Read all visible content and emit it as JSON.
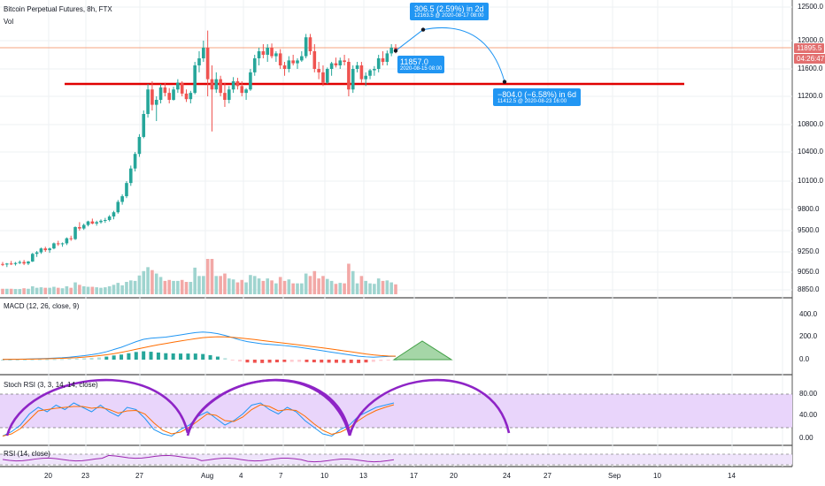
{
  "header": {
    "symbol_title": "Bitcoin Perpetual Futures, 8h, FTX",
    "vol_label": "Vol"
  },
  "price_axis": {
    "ticks": [
      "12500.0",
      "12000.0",
      "11600.0",
      "11200.0",
      "10800.0",
      "10400.0",
      "10100.0",
      "9800.0",
      "9500.0",
      "9250.0",
      "9050.0",
      "8850.0"
    ],
    "last_price": "11895.5",
    "countdown": "04:26:47"
  },
  "time_axis": {
    "labels": [
      "20",
      "23",
      "27",
      "Aug",
      "4",
      "7",
      "10",
      "13",
      "17",
      "20",
      "24",
      "27",
      "Sep",
      "10",
      "14"
    ]
  },
  "annotations": {
    "up_main": "306.5 (2.59%) in 2d",
    "up_sub": "12163.5 @ 2020-08-17  08:00",
    "down_main": "−804.0 (−6.58%) in 6d",
    "down_sub": "11412.5 @ 2020-08-23  16:00",
    "current_main": "11857.0",
    "current_sub": "2020-08-15 08:00"
  },
  "indicators": {
    "macd_title": "MACD (12, 26, close, 9)",
    "macd_ticks": [
      "400.0",
      "200.0",
      "0.0"
    ],
    "stoch_title": "Stoch RSI (3, 3, 14, 14, close)",
    "stoch_ticks": [
      "80.00",
      "40.00",
      "0.00"
    ],
    "rsi_title": "RSI (14, close)"
  },
  "colors": {
    "up": "#26a69a",
    "down": "#ef5350",
    "resistance": "#e00000",
    "arc": "#8e24c6",
    "projection": "#2196f3"
  },
  "chart_data": {
    "type": "candlestick",
    "title": "Bitcoin Perpetual Futures, 8h, FTX",
    "interval": "8h",
    "ylim": [
      8800,
      12600
    ],
    "horizontal_line": 11390,
    "candles_ohlc": [
      [
        9130,
        9150,
        9110,
        9125
      ],
      [
        9125,
        9140,
        9100,
        9135
      ],
      [
        9135,
        9160,
        9120,
        9130
      ],
      [
        9130,
        9150,
        9115,
        9140
      ],
      [
        9140,
        9165,
        9130,
        9150
      ],
      [
        9150,
        9170,
        9120,
        9135
      ],
      [
        9135,
        9160,
        9120,
        9155
      ],
      [
        9155,
        9240,
        9150,
        9230
      ],
      [
        9230,
        9260,
        9200,
        9245
      ],
      [
        9245,
        9300,
        9230,
        9290
      ],
      [
        9290,
        9310,
        9250,
        9270
      ],
      [
        9270,
        9300,
        9240,
        9290
      ],
      [
        9290,
        9360,
        9280,
        9350
      ],
      [
        9350,
        9380,
        9320,
        9340
      ],
      [
        9340,
        9360,
        9310,
        9350
      ],
      [
        9350,
        9420,
        9330,
        9410
      ],
      [
        9410,
        9440,
        9380,
        9400
      ],
      [
        9400,
        9560,
        9390,
        9550
      ],
      [
        9550,
        9620,
        9500,
        9530
      ],
      [
        9530,
        9600,
        9510,
        9580
      ],
      [
        9580,
        9640,
        9560,
        9630
      ],
      [
        9630,
        9670,
        9590,
        9600
      ],
      [
        9600,
        9640,
        9570,
        9620
      ],
      [
        9620,
        9660,
        9600,
        9640
      ],
      [
        9640,
        9680,
        9610,
        9650
      ],
      [
        9650,
        9720,
        9630,
        9700
      ],
      [
        9700,
        9780,
        9660,
        9760
      ],
      [
        9760,
        9900,
        9740,
        9880
      ],
      [
        9880,
        9960,
        9850,
        9940
      ],
      [
        9940,
        10100,
        9920,
        10080
      ],
      [
        10080,
        10260,
        10050,
        10230
      ],
      [
        10230,
        10400,
        10200,
        10380
      ],
      [
        10380,
        10660,
        10350,
        10620
      ],
      [
        10620,
        11000,
        10600,
        10950
      ],
      [
        10950,
        11380,
        10900,
        11300
      ],
      [
        11300,
        11420,
        11000,
        11080
      ],
      [
        11080,
        11200,
        10850,
        11150
      ],
      [
        11150,
        11380,
        11100,
        11330
      ],
      [
        11330,
        11400,
        11200,
        11250
      ],
      [
        11250,
        11320,
        11100,
        11150
      ],
      [
        11150,
        11340,
        11140,
        11300
      ],
      [
        11300,
        11450,
        11250,
        11400
      ],
      [
        11400,
        11420,
        11200,
        11240
      ],
      [
        11240,
        11300,
        11120,
        11160
      ],
      [
        11160,
        11280,
        11100,
        11250
      ],
      [
        11250,
        11700,
        11230,
        11650
      ],
      [
        11650,
        11850,
        11550,
        11750
      ],
      [
        11750,
        12000,
        11700,
        11900
      ],
      [
        11900,
        12150,
        11200,
        11450
      ],
      [
        11450,
        11650,
        10700,
        11300
      ],
      [
        11300,
        11550,
        11250,
        11450
      ],
      [
        11450,
        11500,
        11200,
        11250
      ],
      [
        11250,
        11400,
        11050,
        11150
      ],
      [
        11150,
        11350,
        11100,
        11300
      ],
      [
        11300,
        11480,
        11250,
        11420
      ],
      [
        11420,
        11470,
        11300,
        11350
      ],
      [
        11350,
        11420,
        11200,
        11250
      ],
      [
        11250,
        11320,
        11150,
        11300
      ],
      [
        11300,
        11600,
        11280,
        11550
      ],
      [
        11550,
        11800,
        11500,
        11750
      ],
      [
        11750,
        11900,
        11650,
        11850
      ],
      [
        11850,
        11950,
        11750,
        11800
      ],
      [
        11800,
        11950,
        11700,
        11900
      ],
      [
        11900,
        11960,
        11750,
        11780
      ],
      [
        11780,
        11850,
        11700,
        11820
      ],
      [
        11820,
        11880,
        11600,
        11650
      ],
      [
        11650,
        11700,
        11500,
        11600
      ],
      [
        11600,
        11780,
        11550,
        11720
      ],
      [
        11720,
        11800,
        11650,
        11680
      ],
      [
        11680,
        11750,
        11600,
        11720
      ],
      [
        11720,
        11850,
        11700,
        11780
      ],
      [
        11780,
        12100,
        11750,
        12050
      ],
      [
        12050,
        12100,
        11800,
        11850
      ],
      [
        11850,
        11950,
        11550,
        11600
      ],
      [
        11600,
        11700,
        11450,
        11550
      ],
      [
        11550,
        11650,
        11350,
        11400
      ],
      [
        11400,
        11620,
        11380,
        11600
      ],
      [
        11600,
        11700,
        11500,
        11680
      ],
      [
        11680,
        11760,
        11620,
        11650
      ],
      [
        11650,
        11760,
        11600,
        11720
      ],
      [
        11720,
        11800,
        11650,
        11700
      ],
      [
        11700,
        11750,
        11200,
        11300
      ],
      [
        11300,
        11650,
        11250,
        11600
      ],
      [
        11600,
        11700,
        11550,
        11650
      ],
      [
        11650,
        11700,
        11400,
        11450
      ],
      [
        11450,
        11550,
        11350,
        11500
      ],
      [
        11500,
        11600,
        11450,
        11580
      ],
      [
        11580,
        11640,
        11500,
        11600
      ],
      [
        11600,
        11800,
        11550,
        11750
      ],
      [
        11750,
        11850,
        11650,
        11700
      ],
      [
        11700,
        11860,
        11650,
        11820
      ],
      [
        11820,
        11950,
        11780,
        11900
      ],
      [
        11900,
        11950,
        11820,
        11880
      ]
    ],
    "projection_points": [
      {
        "label": "11857.0",
        "value": 11857.0
      },
      {
        "label": "12163.5",
        "value": 12163.5
      },
      {
        "label": "11412.5",
        "value": 11412.5
      }
    ]
  }
}
